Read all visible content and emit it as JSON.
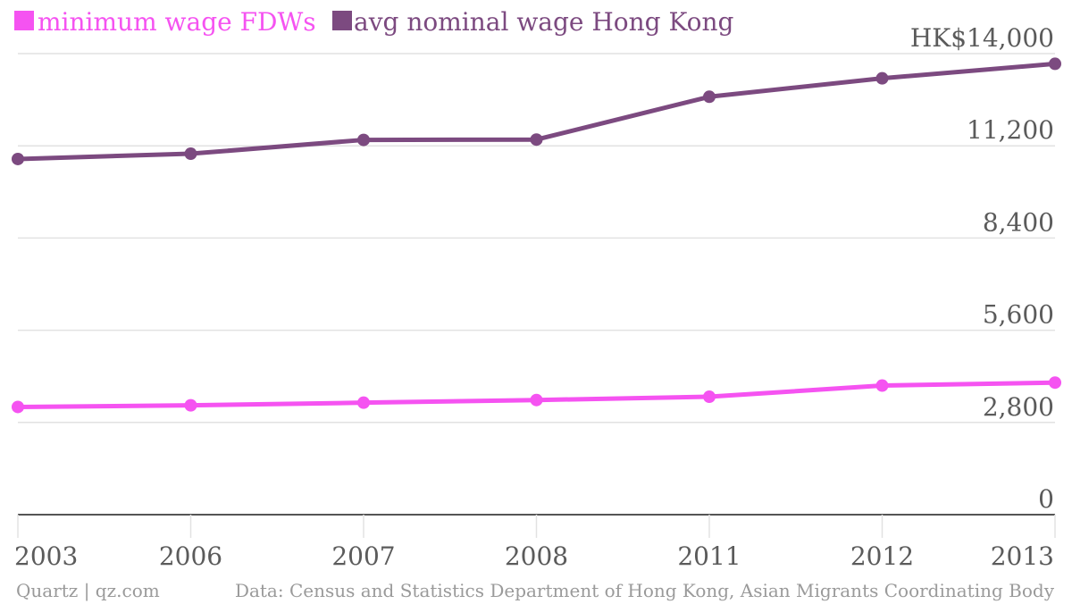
{
  "chart_data": {
    "type": "line",
    "categories": [
      "2003",
      "2006",
      "2007",
      "2008",
      "2011",
      "2012",
      "2013"
    ],
    "series": [
      {
        "name": "minimum wage FDWs",
        "color": "#f553f1",
        "values": [
          3270,
          3320,
          3400,
          3480,
          3580,
          3920,
          4010
        ]
      },
      {
        "name": "avg nominal wage Hong Kong",
        "color": "#7c4a80",
        "values": [
          10800,
          10960,
          11380,
          11390,
          12690,
          13250,
          13690
        ]
      }
    ],
    "y_ticks": [
      {
        "value": 0,
        "label": "0"
      },
      {
        "value": 2800,
        "label": "2,800"
      },
      {
        "value": 5600,
        "label": "5,600"
      },
      {
        "value": 8400,
        "label": "8,400"
      },
      {
        "value": 11200,
        "label": "11,200"
      },
      {
        "value": 14000,
        "label": "HK$14,000"
      }
    ],
    "ylim": [
      0,
      14000
    ],
    "grid": true,
    "legend_position": "top-left",
    "title": "",
    "xlabel": "",
    "ylabel": ""
  },
  "footer": {
    "credit": "Quartz | qz.com",
    "source": "Data: Census and Statistics Department of Hong Kong, Asian Migrants Coordinating Body"
  },
  "colors": {
    "grid": "#e2e2e2",
    "axis": "#555555",
    "tick_text": "#5b5b5b",
    "footer_text": "#9a9a9a"
  }
}
